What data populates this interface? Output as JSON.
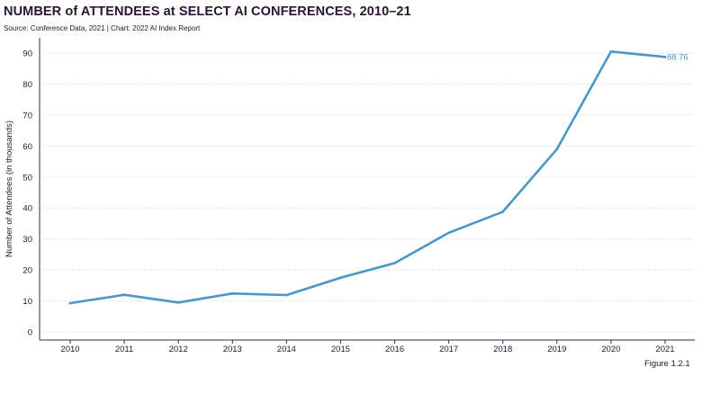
{
  "header": {
    "title": "NUMBER of ATTENDEES at SELECT AI CONFERENCES, 2010–21",
    "source": "Source: Conference Data, 2021 | Chart: 2022 AI Index Report"
  },
  "footer": {
    "figure": "Figure 1.2.1"
  },
  "colors": {
    "line": "#4a97c6",
    "grid": "#e3e3e3",
    "axis": "#3a2a3e"
  },
  "chart_data": {
    "type": "line",
    "title": "NUMBER of ATTENDEES at SELECT AI CONFERENCES, 2010–21",
    "xlabel": "",
    "ylabel": "Number of Attendees (in thousands)",
    "categories": [
      "2010",
      "2011",
      "2012",
      "2013",
      "2014",
      "2015",
      "2016",
      "2017",
      "2018",
      "2019",
      "2020",
      "2021"
    ],
    "series": [
      {
        "values": [
          9.3,
          12.0,
          9.5,
          12.4,
          11.9,
          17.5,
          22.2,
          32.0,
          38.8,
          59.0,
          90.5,
          88.76
        ]
      }
    ],
    "data_labels": [
      {
        "index": 11,
        "text": "88.76"
      }
    ],
    "yticks": [
      0,
      10,
      20,
      30,
      40,
      50,
      60,
      70,
      80,
      90
    ],
    "ylim": [
      0,
      95
    ],
    "grid": "horizontal dashed"
  }
}
